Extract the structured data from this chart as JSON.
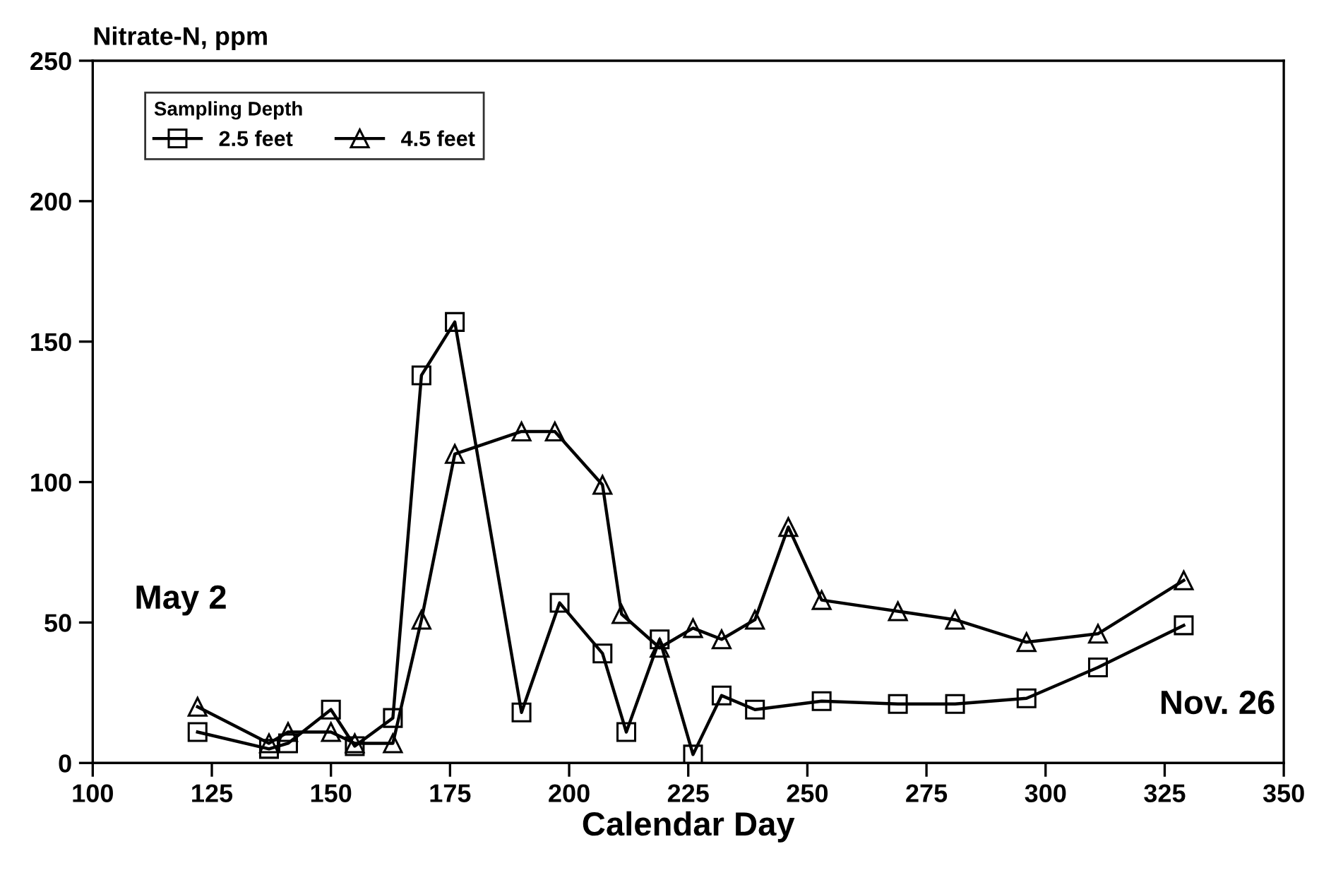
{
  "chart_data": {
    "type": "line",
    "xlabel": "Calendar Day",
    "ylabel": "Nitrate-N, ppm",
    "legend_title": "Sampling Depth",
    "legend": "top left",
    "grid": false,
    "line_style": "solid",
    "xlim": [
      100,
      350
    ],
    "xticks": [
      100,
      125,
      150,
      175,
      200,
      225,
      250,
      275,
      300,
      325,
      350
    ],
    "ylim": [
      0,
      250
    ],
    "yticks": [
      0,
      50,
      100,
      150,
      200,
      250
    ],
    "annotations": [
      "May 2",
      "Nov. 26"
    ],
    "series": [
      {
        "name": "2.5 feet",
        "color": "#000000",
        "marker": "square",
        "x": [
          122,
          137,
          141,
          150,
          155,
          163,
          169,
          176,
          190,
          198,
          207,
          212,
          219,
          226,
          232,
          239,
          253,
          269,
          281,
          296,
          311,
          329
        ],
        "values": [
          11,
          5,
          7,
          19,
          6,
          16,
          138,
          157,
          18,
          57,
          39,
          11,
          44,
          3,
          24,
          19,
          22,
          21,
          21,
          23,
          34,
          49
        ]
      },
      {
        "name": "4.5 feet",
        "color": "#000000",
        "marker": "triangle",
        "x": [
          122,
          137,
          141,
          150,
          155,
          163,
          169,
          176,
          190,
          197,
          207,
          211,
          219,
          226,
          232,
          239,
          246,
          253,
          269,
          281,
          296,
          311,
          329
        ],
        "values": [
          20,
          7,
          11,
          11,
          7,
          7,
          51,
          110,
          118,
          118,
          99,
          53,
          41,
          48,
          44,
          51,
          84,
          58,
          54,
          51,
          43,
          46,
          65
        ]
      }
    ]
  }
}
